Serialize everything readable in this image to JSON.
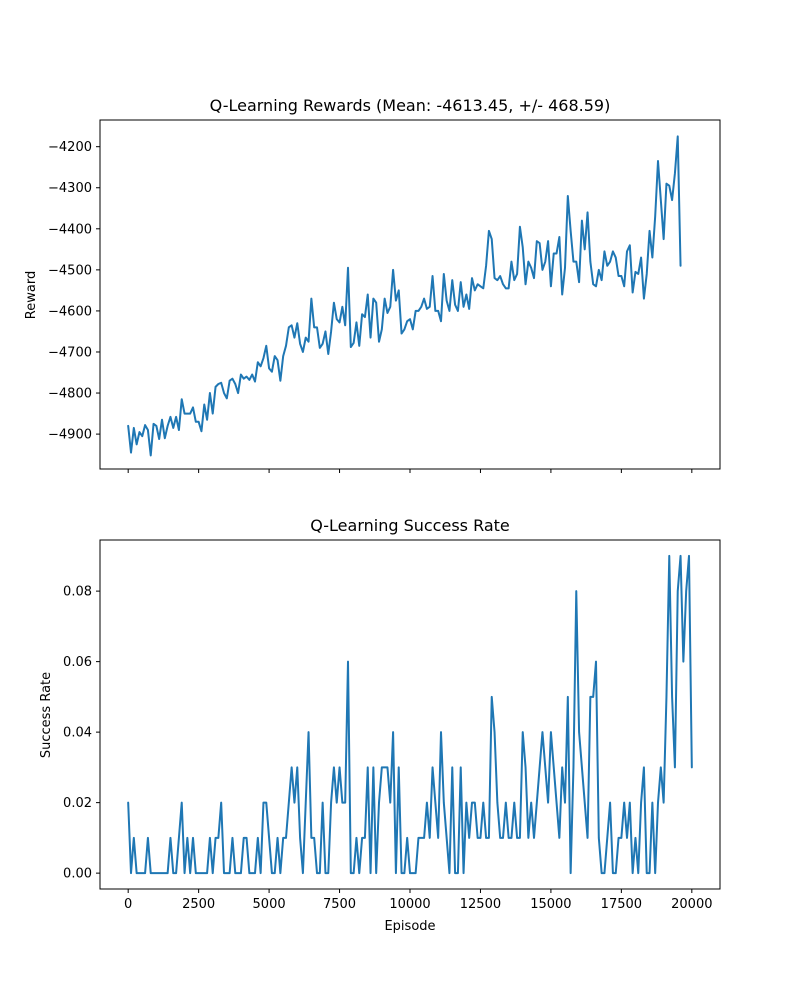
{
  "chart_data": [
    {
      "type": "line",
      "title": "Q-Learning Rewards (Mean: -4613.45, +/- 468.59)",
      "xlabel": "",
      "ylabel": "Reward",
      "xlim": [
        -1000,
        21000
      ],
      "ylim": [
        -4985,
        -4135
      ],
      "x_ticks": [
        0,
        2500,
        5000,
        7500,
        10000,
        12500,
        15000,
        17500,
        20000
      ],
      "y_ticks": [
        -4900,
        -4800,
        -4700,
        -4600,
        -4500,
        -4400,
        -4300,
        -4200
      ],
      "y_tick_labels": [
        "−4900",
        "−4800",
        "−4700",
        "−4600",
        "−4500",
        "−4400",
        "−4300",
        "−4200"
      ],
      "show_x_tick_labels": false,
      "grid": false,
      "color": "#1f77b4",
      "x_start": 0,
      "x_step": 100,
      "values": [
        -4880,
        -4945,
        -4885,
        -4925,
        -4895,
        -4905,
        -4878,
        -4890,
        -4952,
        -4875,
        -4880,
        -4912,
        -4865,
        -4910,
        -4880,
        -4858,
        -4885,
        -4858,
        -4890,
        -4815,
        -4850,
        -4850,
        -4850,
        -4835,
        -4870,
        -4870,
        -4893,
        -4828,
        -4865,
        -4800,
        -4850,
        -4785,
        -4778,
        -4775,
        -4800,
        -4813,
        -4770,
        -4765,
        -4778,
        -4800,
        -4755,
        -4765,
        -4760,
        -4768,
        -4755,
        -4772,
        -4725,
        -4735,
        -4715,
        -4685,
        -4740,
        -4748,
        -4710,
        -4720,
        -4770,
        -4710,
        -4685,
        -4640,
        -4635,
        -4665,
        -4630,
        -4680,
        -4700,
        -4665,
        -4675,
        -4570,
        -4640,
        -4640,
        -4690,
        -4680,
        -4650,
        -4705,
        -4650,
        -4580,
        -4620,
        -4628,
        -4590,
        -4635,
        -4495,
        -4688,
        -4678,
        -4628,
        -4685,
        -4608,
        -4615,
        -4560,
        -4665,
        -4570,
        -4580,
        -4675,
        -4645,
        -4570,
        -4605,
        -4590,
        -4500,
        -4575,
        -4550,
        -4655,
        -4645,
        -4625,
        -4620,
        -4645,
        -4600,
        -4600,
        -4590,
        -4570,
        -4595,
        -4590,
        -4515,
        -4600,
        -4600,
        -4625,
        -4510,
        -4575,
        -4600,
        -4525,
        -4585,
        -4600,
        -4530,
        -4590,
        -4560,
        -4595,
        -4520,
        -4550,
        -4535,
        -4540,
        -4545,
        -4490,
        -4405,
        -4425,
        -4520,
        -4525,
        -4515,
        -4535,
        -4545,
        -4545,
        -4480,
        -4525,
        -4510,
        -4395,
        -4445,
        -4535,
        -4480,
        -4495,
        -4520,
        -4430,
        -4435,
        -4500,
        -4480,
        -4430,
        -4540,
        -4460,
        -4460,
        -4420,
        -4560,
        -4495,
        -4320,
        -4405,
        -4480,
        -4480,
        -4530,
        -4380,
        -4450,
        -4360,
        -4480,
        -4535,
        -4540,
        -4500,
        -4525,
        -4455,
        -4490,
        -4480,
        -4455,
        -4470,
        -4515,
        -4515,
        -4540,
        -4455,
        -4440,
        -4555,
        -4505,
        -4510,
        -4470,
        -4570,
        -4510,
        -4405,
        -4470,
        -4370,
        -4235,
        -4330,
        -4425,
        -4290,
        -4295,
        -4330,
        -4265,
        -4175,
        -4490
      ]
    },
    {
      "type": "line",
      "title": "Q-Learning Success Rate",
      "xlabel": "Episode",
      "ylabel": "Success Rate",
      "xlim": [
        -1000,
        21000
      ],
      "ylim": [
        -0.0045,
        0.0945
      ],
      "x_ticks": [
        0,
        2500,
        5000,
        7500,
        10000,
        12500,
        15000,
        17500,
        20000
      ],
      "x_tick_labels": [
        "0",
        "2500",
        "5000",
        "7500",
        "10000",
        "12500",
        "15000",
        "17500",
        "20000"
      ],
      "y_ticks": [
        0.0,
        0.02,
        0.04,
        0.06,
        0.08
      ],
      "y_tick_labels": [
        "0.00",
        "0.02",
        "0.04",
        "0.06",
        "0.08"
      ],
      "grid": false,
      "color": "#1f77b4",
      "x_start": 0,
      "x_step": 100,
      "values": [
        0.02,
        0.0,
        0.01,
        0.0,
        0.0,
        0.0,
        0.0,
        0.01,
        0.0,
        0.0,
        0.0,
        0.0,
        0.0,
        0.0,
        0.0,
        0.01,
        0.0,
        0.0,
        0.01,
        0.02,
        0.0,
        0.01,
        0.0,
        0.01,
        0.0,
        0.0,
        0.0,
        0.0,
        0.0,
        0.01,
        0.0,
        0.01,
        0.01,
        0.02,
        0.0,
        0.0,
        0.0,
        0.01,
        0.0,
        0.0,
        0.0,
        0.01,
        0.01,
        0.0,
        0.0,
        0.0,
        0.01,
        0.0,
        0.02,
        0.02,
        0.01,
        0.0,
        0.0,
        0.01,
        0.0,
        0.01,
        0.01,
        0.02,
        0.03,
        0.02,
        0.03,
        0.01,
        0.0,
        0.02,
        0.04,
        0.01,
        0.01,
        0.0,
        0.0,
        0.02,
        0.0,
        0.0,
        0.02,
        0.03,
        0.02,
        0.03,
        0.02,
        0.02,
        0.06,
        0.0,
        0.0,
        0.01,
        0.0,
        0.01,
        0.01,
        0.03,
        0.0,
        0.03,
        0.0,
        0.02,
        0.03,
        0.03,
        0.03,
        0.02,
        0.04,
        0.0,
        0.03,
        0.0,
        0.0,
        0.01,
        0.0,
        0.0,
        0.0,
        0.01,
        0.01,
        0.01,
        0.02,
        0.01,
        0.03,
        0.02,
        0.01,
        0.04,
        0.02,
        0.01,
        0.0,
        0.03,
        0.0,
        0.0,
        0.03,
        0.0,
        0.02,
        0.01,
        0.02,
        0.02,
        0.01,
        0.01,
        0.02,
        0.01,
        0.01,
        0.05,
        0.04,
        0.02,
        0.01,
        0.01,
        0.02,
        0.01,
        0.01,
        0.02,
        0.01,
        0.01,
        0.04,
        0.03,
        0.01,
        0.02,
        0.01,
        0.02,
        0.03,
        0.04,
        0.03,
        0.02,
        0.04,
        0.03,
        0.02,
        0.01,
        0.03,
        0.02,
        0.05,
        0.0,
        0.03,
        0.08,
        0.04,
        0.03,
        0.02,
        0.01,
        0.05,
        0.05,
        0.06,
        0.01,
        0.0,
        0.0,
        0.01,
        0.02,
        0.0,
        0.0,
        0.01,
        0.01,
        0.02,
        0.01,
        0.02,
        0.0,
        0.01,
        0.0,
        0.02,
        0.03,
        0.0,
        0.0,
        0.02,
        0.0,
        0.02,
        0.03,
        0.02,
        0.05,
        0.09,
        0.05,
        0.03,
        0.08,
        0.09,
        0.06,
        0.08,
        0.09,
        0.03
      ]
    }
  ]
}
